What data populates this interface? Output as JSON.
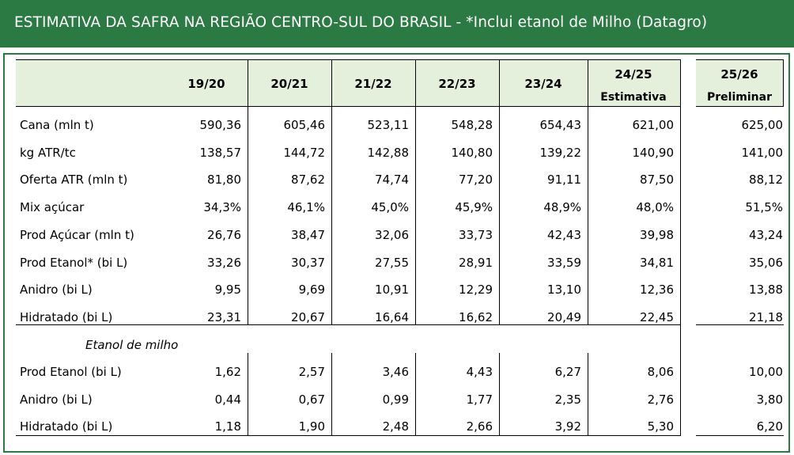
{
  "title": "ESTIMATIVA DA SAFRA NA REGIÃO CENTRO-SUL DO BRASIL - *Inclui etanol de Milho (Datagro)",
  "colors": {
    "title_bg": "#2b7a44",
    "header_bg": "#e4efdc",
    "border": "#2b7a44"
  },
  "columns": [
    {
      "label": "19/20",
      "note": ""
    },
    {
      "label": "20/21",
      "note": ""
    },
    {
      "label": "21/22",
      "note": ""
    },
    {
      "label": "22/23",
      "note": ""
    },
    {
      "label": "23/24",
      "note": ""
    },
    {
      "label": "24/25",
      "note": "Estimativa"
    },
    {
      "label": "25/26",
      "note": "Preliminar"
    }
  ],
  "rows": [
    {
      "label": "Cana (mln t)",
      "values": [
        "590,36",
        "605,46",
        "523,11",
        "548,28",
        "654,43",
        "621,00",
        "625,00"
      ]
    },
    {
      "label": "kg ATR/tc",
      "values": [
        "138,57",
        "144,72",
        "142,88",
        "140,80",
        "139,22",
        "140,90",
        "141,00"
      ]
    },
    {
      "label": "Oferta ATR (mln t)",
      "values": [
        "81,80",
        "87,62",
        "74,74",
        "77,20",
        "91,11",
        "87,50",
        "88,12"
      ]
    },
    {
      "label": "Mix açúcar",
      "values": [
        "34,3%",
        "46,1%",
        "45,0%",
        "45,9%",
        "48,9%",
        "48,0%",
        "51,5%"
      ]
    },
    {
      "label": "Prod Açúcar (mln t)",
      "values": [
        "26,76",
        "38,47",
        "32,06",
        "33,73",
        "42,43",
        "39,98",
        "43,24"
      ]
    },
    {
      "label": "Prod Etanol* (bi L)",
      "values": [
        "33,26",
        "30,37",
        "27,55",
        "28,91",
        "33,59",
        "34,81",
        "35,06"
      ]
    },
    {
      "label": "Anidro (bi L)",
      "values": [
        "9,95",
        "9,69",
        "10,91",
        "12,29",
        "13,10",
        "12,36",
        "13,88"
      ]
    },
    {
      "label": "Hidratado (bi L)",
      "values": [
        "23,31",
        "20,67",
        "16,64",
        "16,62",
        "20,49",
        "22,45",
        "21,18"
      ]
    }
  ],
  "subsection": {
    "label": "Etanol de milho",
    "rows": [
      {
        "label": "Prod Etanol (bi L)",
        "values": [
          "1,62",
          "2,57",
          "3,46",
          "4,43",
          "6,27",
          "8,06",
          "10,00"
        ]
      },
      {
        "label": "Anidro (bi L)",
        "values": [
          "0,44",
          "0,67",
          "0,99",
          "1,77",
          "2,35",
          "2,76",
          "3,80"
        ]
      },
      {
        "label": "Hidratado (bi L)",
        "values": [
          "1,18",
          "1,90",
          "2,48",
          "2,66",
          "3,92",
          "5,30",
          "6,20"
        ]
      }
    ]
  }
}
